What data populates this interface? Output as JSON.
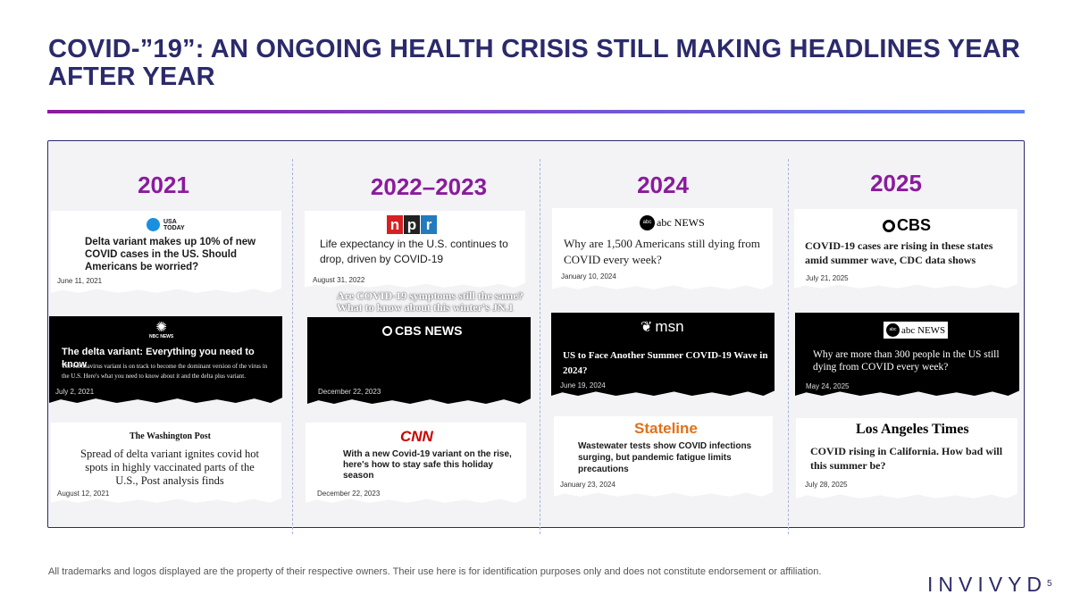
{
  "title": "COVID-”19”: AN ONGOING HEALTH CRISIS STILL MAKING HEADLINES YEAR AFTER YEAR",
  "years": [
    "2021",
    "2022–2023",
    "2024",
    "2025"
  ],
  "cards": {
    "c2021a": {
      "logo": "USA TODAY",
      "headline": "Delta variant makes up 10% of new COVID cases in the US. Should Americans be worried?",
      "date": "June 11, 2021"
    },
    "c2021b": {
      "logo": "NBC NEWS",
      "headline": "The delta variant: Everything you need to know",
      "sub": "The coronavirus variant is on track to become the dominant version of the virus in the U.S. Here's what you need to know about it and the delta plus variant.",
      "date": "July 2, 2021"
    },
    "c2021c": {
      "logo": "The Washington Post",
      "headline": "Spread of delta variant ignites covid hot spots in highly vaccinated parts of the U.S., Post analysis finds",
      "date": "August 12, 2021"
    },
    "c2022a": {
      "logo": "npr",
      "headline": "Life expectancy in the U.S. continues to drop, driven by COVID-19",
      "date": "August 31, 2022"
    },
    "c2022b": {
      "logo": "CBS NEWS",
      "headline": "Are COVID-19 symptoms still the same? What to know about this winter's JN.1",
      "date": "December 22, 2023"
    },
    "c2022c": {
      "logo": "CNN",
      "headline": "With a new Covid-19 variant on the rise, here's how to stay safe this holiday season",
      "date": "December 22, 2023"
    },
    "c2024a": {
      "logo": "abc NEWS",
      "headline": "Why are 1,500 Americans still dying from COVID every week?",
      "date": "January 10, 2024"
    },
    "c2024b": {
      "logo": "msn",
      "headline": "US to Face Another Summer COVID-19 Wave in 2024?",
      "date": "June 19, 2024"
    },
    "c2024c": {
      "logo": "Stateline",
      "headline": "Wastewater tests show COVID infections surging, but pandemic fatigue limits precautions",
      "date": "January 23, 2024"
    },
    "c2025a": {
      "logo": "CBS",
      "headline": "COVID-19 cases are rising in these states amid summer wave, CDC data shows",
      "date": "July 21, 2025"
    },
    "c2025b": {
      "logo": "abc NEWS",
      "headline": "Why are more than 300 people in the US still dying from COVID every week?",
      "date": "May 24, 2025"
    },
    "c2025c": {
      "logo": "Los Angeles Times",
      "headline": "COVID rising in California. How bad will this summer be?",
      "date": "July 28, 2025"
    }
  },
  "footer": "All trademarks and logos displayed are the property of their respective owners. Their use here is for identification purposes only and does not constitute endorsement or affiliation.",
  "brand": "INVIVYD",
  "page_number": "5",
  "colors": {
    "navy": "#2b2a6b",
    "purple": "#8a1b9c",
    "blue": "#5b7ff0"
  }
}
